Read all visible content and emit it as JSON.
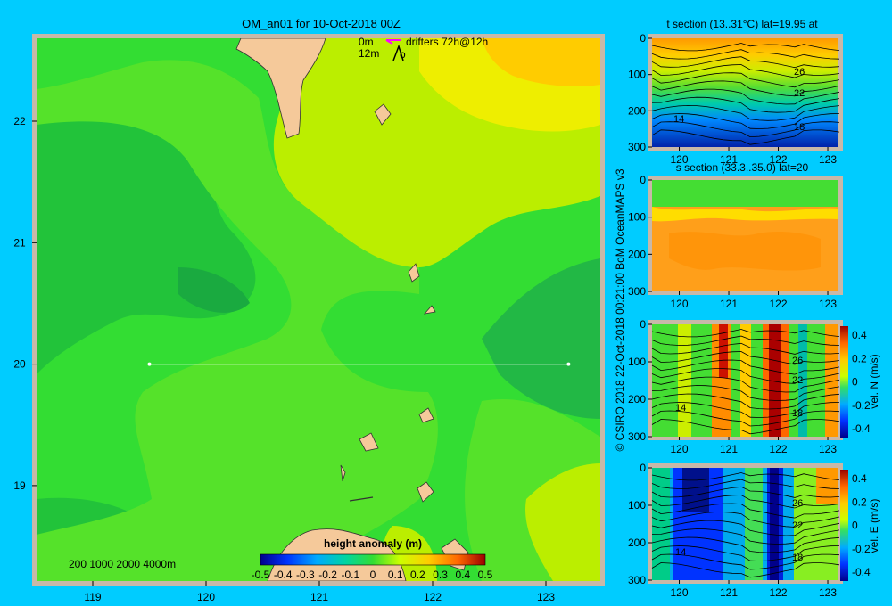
{
  "main_map": {
    "title": "OM_an01 for 10-Oct-2018 00Z",
    "x_ticks": [
      "119",
      "120",
      "121",
      "122",
      "123"
    ],
    "y_ticks": [
      "22",
      "21",
      "20",
      "19"
    ],
    "legend_depths": [
      "0m",
      "12m"
    ],
    "legend_drifters": "drifters 72h@12h",
    "legend_o": "o",
    "bathy_legend": "200  1000  2000  4000m",
    "colorbar_title": "height anomaly (m)",
    "colorbar_ticks": [
      "-0.5",
      "-0.4",
      "-0.3",
      "-0.2",
      "-0.1",
      "0",
      "0.1",
      "0.2",
      "0.3",
      "0.4",
      "0.5"
    ],
    "section_line": {
      "lon_start": 119.5,
      "lon_end": 123.2,
      "lat": 20
    }
  },
  "sections": {
    "t": {
      "title": "t section (13..31°C) lat=19.95 at",
      "contour_labels": [
        "26",
        "22",
        "14",
        "18"
      ]
    },
    "s": {
      "title": "s section (33.3..35.0) lat=20"
    },
    "n": {
      "contour_labels": [
        "26",
        "22",
        "14",
        "18"
      ],
      "colorbar_ticks": [
        "0.4",
        "0.2",
        "0",
        "-0.2",
        "-0.4"
      ],
      "colorbar_label": "vel. N (m/s)"
    },
    "e": {
      "contour_labels": [
        "26",
        "22",
        "14",
        "18"
      ],
      "colorbar_ticks": [
        "0.4",
        "0.2",
        "0",
        "-0.2",
        "-0.4"
      ],
      "colorbar_label": "vel. E (m/s)"
    },
    "x_ticks": [
      "120",
      "121",
      "122",
      "123"
    ],
    "y_ticks": [
      "0",
      "100",
      "200",
      "300"
    ]
  },
  "credit": "© CSIRO 2018   22-Oct-2018 00:21:00 BoM OceanMAPS v3",
  "colors": {
    "background": "#00ccff",
    "land": "#f5c99a"
  }
}
